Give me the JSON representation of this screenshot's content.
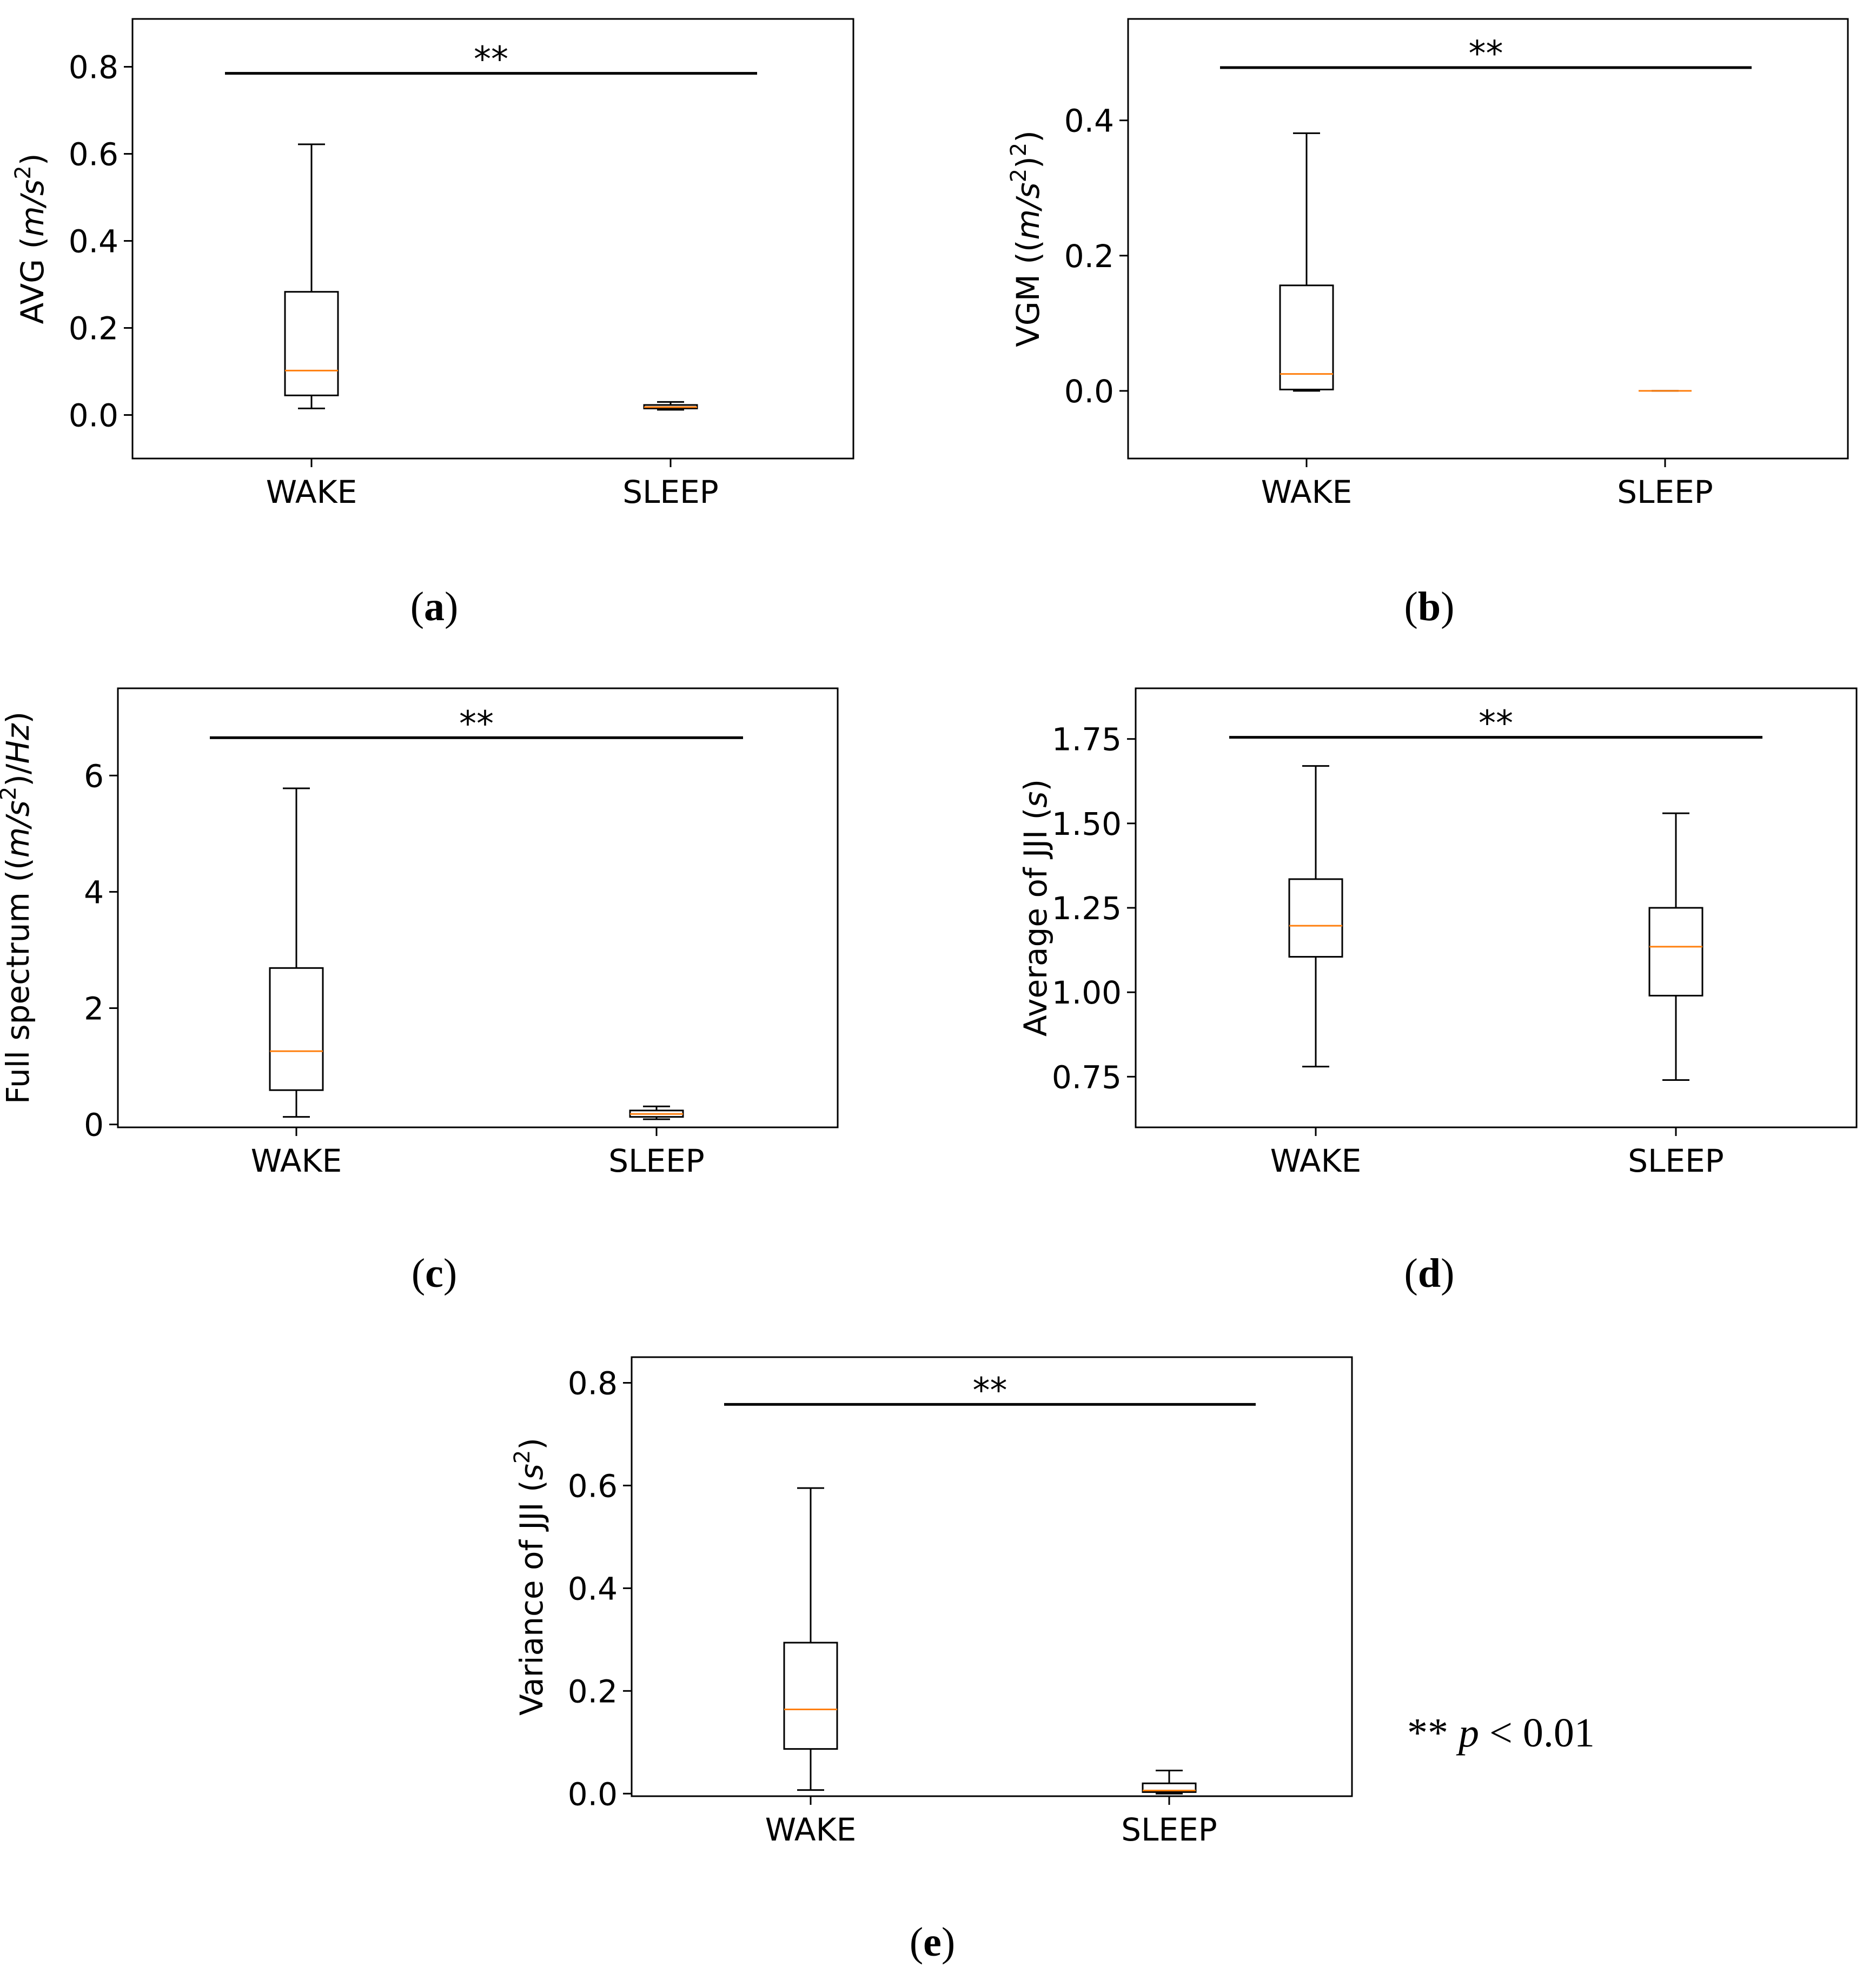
{
  "figure": {
    "legend_note": {
      "stars": "**",
      "p": "p",
      "rest": "< 0.01"
    },
    "median_color": "#ff7f0e",
    "box_color": "#000000"
  },
  "chart_data": [
    {
      "panel": "a",
      "type": "boxplot",
      "ylabel": "AVG (m/s²)",
      "ylabel_parts": {
        "pre": "AVG (",
        "var": "m/s",
        "sup": "2",
        "post": ")"
      },
      "categories": [
        "WAKE",
        "SLEEP"
      ],
      "ylim": [
        -0.1,
        0.91
      ],
      "yticks": [
        0.0,
        0.2,
        0.4,
        0.6,
        0.8
      ],
      "ytick_labels": [
        "0.0",
        "0.2",
        "0.4",
        "0.6",
        "0.8"
      ],
      "boxes": [
        {
          "whislo": 0.015,
          "q1": 0.045,
          "med": 0.102,
          "q3": 0.283,
          "whishi": 0.622
        },
        {
          "whislo": 0.012,
          "q1": 0.015,
          "med": 0.018,
          "q3": 0.023,
          "whishi": 0.03
        }
      ],
      "significance": {
        "label": "**",
        "y": 0.785
      },
      "caption": "a"
    },
    {
      "panel": "b",
      "type": "boxplot",
      "ylabel": "VGM ((m/s²)²)",
      "ylabel_parts": {
        "pre": "VGM ((",
        "var": "m/s",
        "sup": "2",
        "post": ")",
        "sup2": "2",
        "post2": ")"
      },
      "categories": [
        "WAKE",
        "SLEEP"
      ],
      "ylim": [
        -0.1,
        0.55
      ],
      "yticks": [
        0.0,
        0.2,
        0.4
      ],
      "ytick_labels": [
        "0.0",
        "0.2",
        "0.4"
      ],
      "boxes": [
        {
          "whislo": 0.0,
          "q1": 0.002,
          "med": 0.025,
          "q3": 0.156,
          "whishi": 0.381
        },
        {
          "whislo": 0.0,
          "q1": 0.0,
          "med": 0.0,
          "q3": 0.0,
          "whishi": 0.0
        }
      ],
      "significance": {
        "label": "**",
        "y": 0.478
      },
      "caption": "b"
    },
    {
      "panel": "c",
      "type": "boxplot",
      "ylabel": "Full spectrum ((m/s²)/Hz)",
      "ylabel_parts": {
        "pre": "Full spectrum ((",
        "var": "m/s",
        "sup": "2",
        "post": ")/",
        "var2": "Hz",
        "post2": ")"
      },
      "categories": [
        "WAKE",
        "SLEEP"
      ],
      "ylim": [
        -0.05,
        7.5
      ],
      "yticks": [
        0,
        2,
        4,
        6
      ],
      "ytick_labels": [
        "0",
        "2",
        "4",
        "6"
      ],
      "boxes": [
        {
          "whislo": 0.13,
          "q1": 0.59,
          "med": 1.26,
          "q3": 2.69,
          "whishi": 5.78
        },
        {
          "whislo": 0.09,
          "q1": 0.13,
          "med": 0.18,
          "q3": 0.24,
          "whishi": 0.31
        }
      ],
      "significance": {
        "label": "**",
        "y": 6.65
      },
      "caption": "c"
    },
    {
      "panel": "d",
      "type": "boxplot",
      "ylabel": "Average of JJI (s)",
      "ylabel_parts": {
        "pre": "Average of JJI (",
        "var": "s",
        "post": ")"
      },
      "categories": [
        "WAKE",
        "SLEEP"
      ],
      "ylim": [
        0.6,
        1.9
      ],
      "yticks": [
        0.75,
        1.0,
        1.25,
        1.5,
        1.75
      ],
      "ytick_labels": [
        "0.75",
        "1.00",
        "1.25",
        "1.50",
        "1.75"
      ],
      "boxes": [
        {
          "whislo": 0.78,
          "q1": 1.105,
          "med": 1.197,
          "q3": 1.335,
          "whishi": 1.67
        },
        {
          "whislo": 0.74,
          "q1": 0.99,
          "med": 1.135,
          "q3": 1.25,
          "whishi": 1.53
        }
      ],
      "significance": {
        "label": "**",
        "y": 1.755
      },
      "caption": "d"
    },
    {
      "panel": "e",
      "type": "boxplot",
      "ylabel": "Variance of JJI (s²)",
      "ylabel_parts": {
        "pre": "Variance of JJI  (",
        "var": "s",
        "sup": "2",
        "post": ")"
      },
      "categories": [
        "WAKE",
        "SLEEP"
      ],
      "ylim": [
        -0.005,
        0.85
      ],
      "yticks": [
        0.0,
        0.2,
        0.4,
        0.6,
        0.8
      ],
      "ytick_labels": [
        "0.0",
        "0.2",
        "0.4",
        "0.6",
        "0.8"
      ],
      "boxes": [
        {
          "whislo": 0.007,
          "q1": 0.087,
          "med": 0.164,
          "q3": 0.294,
          "whishi": 0.595
        },
        {
          "whislo": 0.0,
          "q1": 0.003,
          "med": 0.006,
          "q3": 0.02,
          "whishi": 0.045
        }
      ],
      "significance": {
        "label": "**",
        "y": 0.758
      },
      "caption": "e"
    }
  ]
}
